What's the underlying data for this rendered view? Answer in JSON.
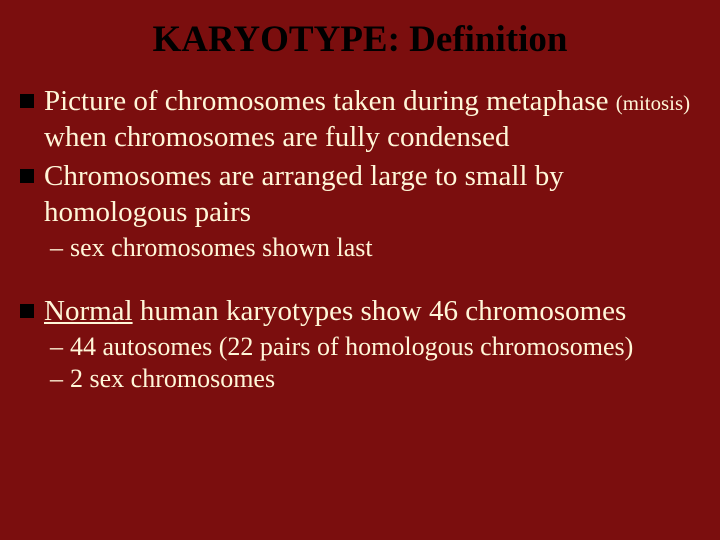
{
  "background_color": "#7b0e0e",
  "text_color": "#fff6d8",
  "title_color": "#000000",
  "bullet_square_color": "#000000",
  "title_fontsize": 37,
  "main_fontsize": 29,
  "sub_fontsize": 26,
  "title": "KARYOTYPE:  Definition",
  "bullets": [
    {
      "segments": [
        {
          "text": "Picture of chromosomes taken during metaphase "
        },
        {
          "text": "(mitosis)",
          "small": true
        },
        {
          "text": " when chromosomes are fully condensed"
        }
      ]
    },
    {
      "segments": [
        {
          "text": "Chromosomes are arranged large to small by homologous pairs"
        }
      ],
      "subs": [
        {
          "text": "sex chromosomes shown last"
        }
      ]
    }
  ],
  "bullets2": [
    {
      "segments": [
        {
          "text": "Normal",
          "underline": true
        },
        {
          "text": " human karyotypes show 46 chromosomes"
        }
      ],
      "subs": [
        {
          "text": "44 autosomes (22 pairs of homologous chromosomes)"
        },
        {
          "text": "2 sex chromosomes"
        }
      ]
    }
  ]
}
